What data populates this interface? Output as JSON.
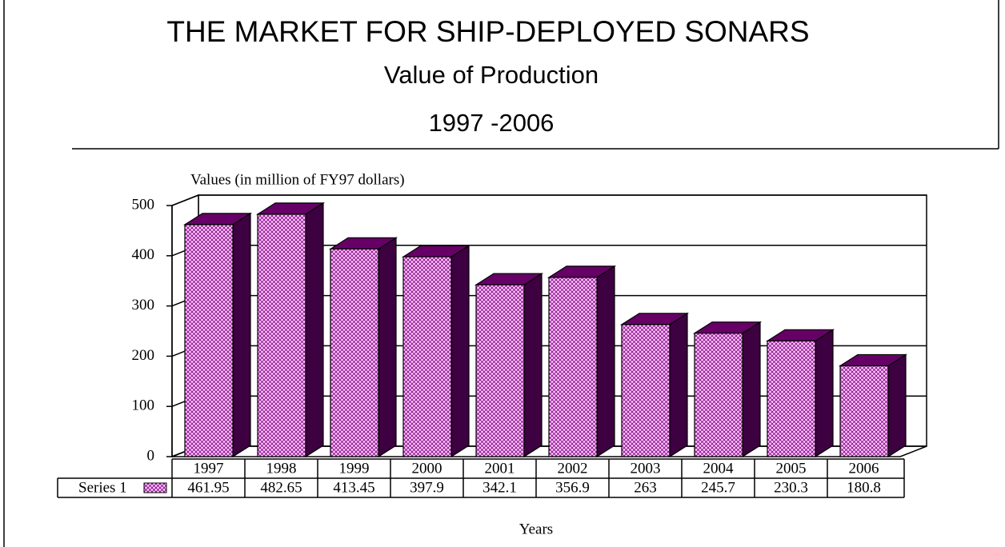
{
  "chart_data": {
    "type": "bar3d",
    "title": "THE MARKET FOR SHIP-DEPLOYED SONARS",
    "subtitle": "Value of Production",
    "period": "1997 -2006",
    "y_label": "Values (in million of FY97 dollars)",
    "x_label": "Years",
    "categories": [
      "1997",
      "1998",
      "1999",
      "2000",
      "2001",
      "2002",
      "2003",
      "2004",
      "2005",
      "2006"
    ],
    "series": [
      {
        "name": "Series 1",
        "color": "#ffccff",
        "values": [
          461.95,
          482.65,
          413.45,
          397.9,
          342.1,
          356.9,
          263,
          245.7,
          230.3,
          180.8
        ]
      }
    ],
    "ylim": [
      0,
      500
    ],
    "yticks": [
      0,
      100,
      200,
      300,
      400,
      500
    ],
    "grid": true,
    "data_table": true
  }
}
